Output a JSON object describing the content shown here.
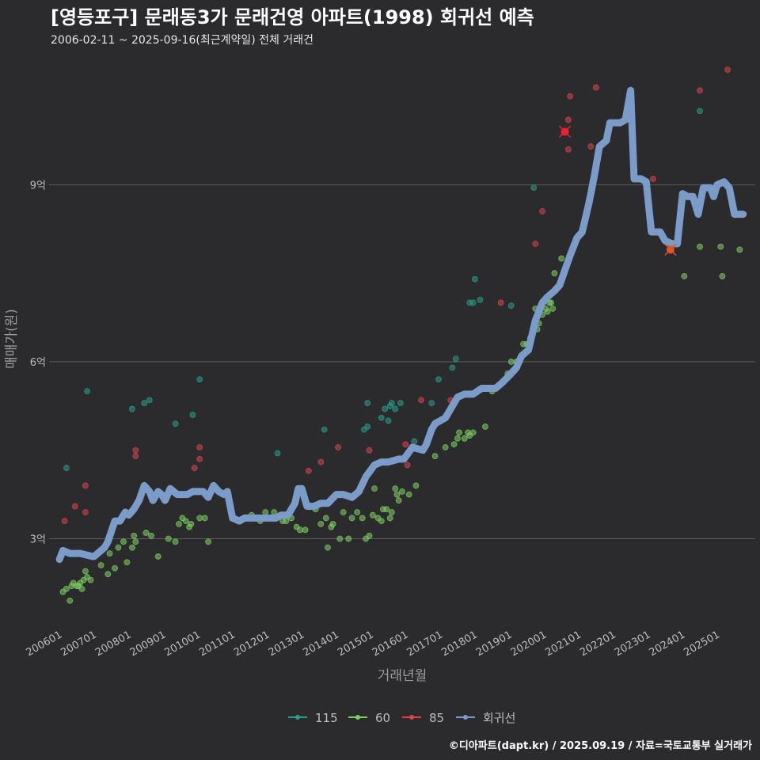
{
  "header": {
    "title": "[영등포구] 문래동3가 문래건영 아파트(1998) 회귀선 예측",
    "subtitle": "2006-02-11 ~ 2025-09-16(최근계약일) 전체 거래건"
  },
  "caption": "©디아파트(dapt.kr) / 2025.09.19 / 자료=국토교통부 실거래가",
  "colors": {
    "background": "#2b2b2d",
    "grid": "#5c5c5c",
    "s115": "#2a9d8a",
    "s60": "#7ecf62",
    "s85": "#d9434b",
    "regression": "#7b9bc9"
  },
  "chart_data": {
    "type": "scatter",
    "title": "[영등포구] 문래동3가 문래건영 아파트(1998) 회귀선 예측",
    "xlabel": "거래년월",
    "ylabel": "매매가(원)",
    "x_unit": "year (decimal)",
    "y_unit": "억",
    "xlim": [
      2005.7,
      2026.1
    ],
    "ylim": [
      1.45,
      11.3
    ],
    "x_ticks": [
      {
        "x": 2006.0,
        "label": "200601"
      },
      {
        "x": 2007.0,
        "label": "200701"
      },
      {
        "x": 2008.0,
        "label": "200801"
      },
      {
        "x": 2009.0,
        "label": "200901"
      },
      {
        "x": 2010.0,
        "label": "201001"
      },
      {
        "x": 2011.0,
        "label": "201101"
      },
      {
        "x": 2012.0,
        "label": "201201"
      },
      {
        "x": 2013.0,
        "label": "201301"
      },
      {
        "x": 2014.0,
        "label": "201401"
      },
      {
        "x": 2015.0,
        "label": "201501"
      },
      {
        "x": 2016.0,
        "label": "201601"
      },
      {
        "x": 2017.0,
        "label": "201701"
      },
      {
        "x": 2018.0,
        "label": "201801"
      },
      {
        "x": 2019.0,
        "label": "201901"
      },
      {
        "x": 2020.0,
        "label": "202001"
      },
      {
        "x": 2021.0,
        "label": "202101"
      },
      {
        "x": 2022.0,
        "label": "202201"
      },
      {
        "x": 2023.0,
        "label": "202301"
      },
      {
        "x": 2024.0,
        "label": "202401"
      },
      {
        "x": 2025.0,
        "label": "202501"
      }
    ],
    "y_ticks": [
      {
        "y": 3,
        "label": "3억"
      },
      {
        "y": 6,
        "label": "6억"
      },
      {
        "y": 9,
        "label": "9억"
      }
    ],
    "legend": [
      {
        "key": "115",
        "label": "115",
        "color": "#2a9d8a"
      },
      {
        "key": "60",
        "label": "60",
        "color": "#7ecf62"
      },
      {
        "key": "85",
        "label": "85",
        "color": "#d9434b"
      },
      {
        "key": "reg",
        "label": "회귀선",
        "color": "#7b9bc9"
      }
    ],
    "series": [
      {
        "name": "115",
        "points": [
          [
            2006.2,
            4.2
          ],
          [
            2006.8,
            5.5
          ],
          [
            2008.1,
            5.2
          ],
          [
            2008.45,
            5.3
          ],
          [
            2008.6,
            5.35
          ],
          [
            2009.35,
            4.95
          ],
          [
            2009.85,
            5.1
          ],
          [
            2010.05,
            5.7
          ],
          [
            2012.3,
            4.45
          ],
          [
            2013.65,
            4.85
          ],
          [
            2014.8,
            4.85
          ],
          [
            2014.9,
            4.9
          ],
          [
            2014.9,
            5.3
          ],
          [
            2015.3,
            5.05
          ],
          [
            2015.4,
            5.2
          ],
          [
            2015.5,
            5.0
          ],
          [
            2015.55,
            5.25
          ],
          [
            2015.6,
            5.3
          ],
          [
            2015.7,
            5.2
          ],
          [
            2015.85,
            5.3
          ],
          [
            2016.25,
            4.65
          ],
          [
            2016.75,
            5.3
          ],
          [
            2016.95,
            5.7
          ],
          [
            2017.35,
            5.9
          ],
          [
            2017.45,
            6.05
          ],
          [
            2017.85,
            7.0
          ],
          [
            2017.95,
            7.0
          ],
          [
            2018.0,
            7.4
          ],
          [
            2018.15,
            7.05
          ],
          [
            2019.05,
            6.95
          ],
          [
            2019.7,
            8.95
          ],
          [
            2024.5,
            10.25
          ]
        ]
      },
      {
        "name": "60",
        "points": [
          [
            2006.1,
            2.1
          ],
          [
            2006.2,
            2.15
          ],
          [
            2006.3,
            1.95
          ],
          [
            2006.35,
            2.2
          ],
          [
            2006.4,
            2.25
          ],
          [
            2006.5,
            2.2
          ],
          [
            2006.55,
            2.2
          ],
          [
            2006.6,
            2.25
          ],
          [
            2006.65,
            2.15
          ],
          [
            2006.7,
            2.3
          ],
          [
            2006.75,
            2.45
          ],
          [
            2006.8,
            2.35
          ],
          [
            2006.9,
            2.3
          ],
          [
            2007.0,
            2.7
          ],
          [
            2007.2,
            2.55
          ],
          [
            2007.4,
            2.4
          ],
          [
            2007.45,
            2.75
          ],
          [
            2007.6,
            2.5
          ],
          [
            2007.7,
            2.85
          ],
          [
            2007.85,
            2.95
          ],
          [
            2007.95,
            2.6
          ],
          [
            2008.1,
            2.85
          ],
          [
            2008.15,
            3.05
          ],
          [
            2008.2,
            2.95
          ],
          [
            2008.5,
            3.1
          ],
          [
            2008.65,
            3.05
          ],
          [
            2008.85,
            2.7
          ],
          [
            2009.15,
            3.0
          ],
          [
            2009.35,
            2.95
          ],
          [
            2009.45,
            3.25
          ],
          [
            2009.55,
            3.35
          ],
          [
            2009.65,
            3.3
          ],
          [
            2009.75,
            3.2
          ],
          [
            2009.8,
            3.25
          ],
          [
            2010.05,
            3.35
          ],
          [
            2010.2,
            3.35
          ],
          [
            2010.3,
            2.95
          ],
          [
            2011.15,
            3.3
          ],
          [
            2011.55,
            3.4
          ],
          [
            2011.8,
            3.3
          ],
          [
            2011.95,
            3.45
          ],
          [
            2012.2,
            3.45
          ],
          [
            2012.45,
            3.3
          ],
          [
            2012.55,
            3.3
          ],
          [
            2012.7,
            3.35
          ],
          [
            2012.85,
            3.2
          ],
          [
            2012.95,
            3.15
          ],
          [
            2013.1,
            3.15
          ],
          [
            2013.4,
            3.5
          ],
          [
            2013.55,
            3.25
          ],
          [
            2013.7,
            3.35
          ],
          [
            2013.75,
            2.85
          ],
          [
            2013.85,
            3.2
          ],
          [
            2013.9,
            3.25
          ],
          [
            2014.1,
            3.0
          ],
          [
            2014.2,
            3.45
          ],
          [
            2014.35,
            3.0
          ],
          [
            2014.45,
            3.35
          ],
          [
            2014.6,
            3.45
          ],
          [
            2014.75,
            3.35
          ],
          [
            2014.85,
            3.0
          ],
          [
            2014.95,
            3.05
          ],
          [
            2015.05,
            3.4
          ],
          [
            2015.1,
            3.85
          ],
          [
            2015.2,
            3.35
          ],
          [
            2015.3,
            3.3
          ],
          [
            2015.35,
            3.5
          ],
          [
            2015.45,
            3.5
          ],
          [
            2015.55,
            3.35
          ],
          [
            2015.6,
            3.45
          ],
          [
            2015.7,
            3.85
          ],
          [
            2015.75,
            3.75
          ],
          [
            2015.8,
            3.65
          ],
          [
            2015.9,
            3.8
          ],
          [
            2016.1,
            3.75
          ],
          [
            2016.3,
            3.9
          ],
          [
            2016.85,
            4.4
          ],
          [
            2017.15,
            4.55
          ],
          [
            2017.4,
            4.6
          ],
          [
            2017.5,
            4.7
          ],
          [
            2017.55,
            4.8
          ],
          [
            2017.7,
            4.7
          ],
          [
            2017.8,
            4.8
          ],
          [
            2017.85,
            4.75
          ],
          [
            2017.95,
            4.8
          ],
          [
            2018.3,
            4.9
          ],
          [
            2018.5,
            5.5
          ],
          [
            2018.95,
            5.8
          ],
          [
            2019.05,
            6.0
          ],
          [
            2019.15,
            5.85
          ],
          [
            2019.2,
            6.0
          ],
          [
            2019.4,
            6.3
          ],
          [
            2019.5,
            6.3
          ],
          [
            2019.6,
            6.4
          ],
          [
            2019.75,
            6.9
          ],
          [
            2019.8,
            6.55
          ],
          [
            2019.85,
            6.65
          ],
          [
            2019.95,
            6.8
          ],
          [
            2020.05,
            6.9
          ],
          [
            2020.1,
            6.85
          ],
          [
            2020.15,
            7.0
          ],
          [
            2020.2,
            7.0
          ],
          [
            2020.25,
            6.9
          ],
          [
            2020.3,
            7.5
          ],
          [
            2020.5,
            7.75
          ],
          [
            2024.05,
            7.45
          ],
          [
            2024.5,
            7.95
          ],
          [
            2025.1,
            7.95
          ],
          [
            2025.15,
            7.45
          ],
          [
            2025.65,
            7.9
          ]
        ]
      },
      {
        "name": "85",
        "points": [
          [
            2006.15,
            3.3
          ],
          [
            2006.45,
            3.55
          ],
          [
            2006.75,
            3.45
          ],
          [
            2006.75,
            3.9
          ],
          [
            2008.2,
            4.4
          ],
          [
            2008.2,
            4.5
          ],
          [
            2009.9,
            4.2
          ],
          [
            2010.05,
            4.35
          ],
          [
            2010.05,
            4.55
          ],
          [
            2013.2,
            4.15
          ],
          [
            2013.55,
            4.3
          ],
          [
            2014.05,
            4.55
          ],
          [
            2014.95,
            4.5
          ],
          [
            2016.0,
            4.6
          ],
          [
            2016.05,
            4.25
          ],
          [
            2016.45,
            5.35
          ],
          [
            2017.3,
            5.35
          ],
          [
            2018.75,
            7.0
          ],
          [
            2019.75,
            8.0
          ],
          [
            2019.95,
            8.55
          ],
          [
            2020.7,
            10.1
          ],
          [
            2020.7,
            9.6
          ],
          [
            2020.75,
            10.5
          ],
          [
            2021.35,
            9.65
          ],
          [
            2021.5,
            10.65
          ],
          [
            2023.15,
            9.1
          ],
          [
            2023.65,
            7.9
          ],
          [
            2024.5,
            10.6
          ],
          [
            2025.3,
            10.95
          ]
        ]
      }
    ],
    "highlighted": [
      {
        "series": "85",
        "x": 2020.6,
        "y": 9.9,
        "color": "#e8232f"
      },
      {
        "series": "85",
        "x": 2023.65,
        "y": 7.9,
        "color": "#e2542b"
      }
    ],
    "regression": [
      [
        2006.0,
        2.65
      ],
      [
        2006.1,
        2.8
      ],
      [
        2006.3,
        2.75
      ],
      [
        2006.6,
        2.75
      ],
      [
        2006.95,
        2.7
      ],
      [
        2007.0,
        2.7
      ],
      [
        2007.3,
        2.85
      ],
      [
        2007.4,
        2.95
      ],
      [
        2007.6,
        3.3
      ],
      [
        2007.75,
        3.3
      ],
      [
        2007.9,
        3.45
      ],
      [
        2008.0,
        3.4
      ],
      [
        2008.15,
        3.5
      ],
      [
        2008.3,
        3.65
      ],
      [
        2008.45,
        3.9
      ],
      [
        2008.6,
        3.8
      ],
      [
        2008.7,
        3.65
      ],
      [
        2008.85,
        3.8
      ],
      [
        2008.95,
        3.75
      ],
      [
        2009.05,
        3.65
      ],
      [
        2009.2,
        3.85
      ],
      [
        2009.4,
        3.75
      ],
      [
        2009.7,
        3.75
      ],
      [
        2009.85,
        3.8
      ],
      [
        2010.15,
        3.8
      ],
      [
        2010.3,
        3.7
      ],
      [
        2010.45,
        3.9
      ],
      [
        2010.6,
        3.8
      ],
      [
        2010.75,
        3.75
      ],
      [
        2010.85,
        3.8
      ],
      [
        2011.0,
        3.35
      ],
      [
        2011.2,
        3.3
      ],
      [
        2011.35,
        3.35
      ],
      [
        2011.6,
        3.35
      ],
      [
        2012.1,
        3.35
      ],
      [
        2012.25,
        3.35
      ],
      [
        2012.4,
        3.4
      ],
      [
        2012.6,
        3.4
      ],
      [
        2012.8,
        3.6
      ],
      [
        2012.9,
        3.85
      ],
      [
        2013.0,
        3.85
      ],
      [
        2013.15,
        3.55
      ],
      [
        2013.35,
        3.55
      ],
      [
        2013.55,
        3.6
      ],
      [
        2013.75,
        3.6
      ],
      [
        2014.0,
        3.75
      ],
      [
        2014.2,
        3.75
      ],
      [
        2014.45,
        3.7
      ],
      [
        2014.65,
        3.8
      ],
      [
        2014.85,
        4.05
      ],
      [
        2015.1,
        4.25
      ],
      [
        2015.3,
        4.3
      ],
      [
        2015.5,
        4.3
      ],
      [
        2015.8,
        4.35
      ],
      [
        2015.95,
        4.35
      ],
      [
        2016.2,
        4.55
      ],
      [
        2016.5,
        4.5
      ],
      [
        2016.6,
        4.6
      ],
      [
        2016.75,
        4.85
      ],
      [
        2016.85,
        4.95
      ],
      [
        2017.0,
        5.0
      ],
      [
        2017.15,
        5.05
      ],
      [
        2017.3,
        5.2
      ],
      [
        2017.5,
        5.4
      ],
      [
        2017.7,
        5.45
      ],
      [
        2017.95,
        5.45
      ],
      [
        2018.2,
        5.55
      ],
      [
        2018.6,
        5.55
      ],
      [
        2018.8,
        5.65
      ],
      [
        2019.05,
        5.8
      ],
      [
        2019.2,
        5.9
      ],
      [
        2019.35,
        6.1
      ],
      [
        2019.55,
        6.2
      ],
      [
        2019.75,
        6.7
      ],
      [
        2019.95,
        7.0
      ],
      [
        2020.1,
        7.1
      ],
      [
        2020.3,
        7.2
      ],
      [
        2020.45,
        7.3
      ],
      [
        2020.6,
        7.55
      ],
      [
        2020.75,
        7.8
      ],
      [
        2020.95,
        8.1
      ],
      [
        2021.1,
        8.2
      ],
      [
        2021.3,
        8.7
      ],
      [
        2021.45,
        9.15
      ],
      [
        2021.6,
        9.65
      ],
      [
        2021.8,
        9.75
      ],
      [
        2021.9,
        10.05
      ],
      [
        2022.2,
        10.05
      ],
      [
        2022.35,
        10.1
      ],
      [
        2022.5,
        10.6
      ],
      [
        2022.6,
        9.1
      ],
      [
        2022.8,
        9.1
      ],
      [
        2022.95,
        9.05
      ],
      [
        2023.1,
        8.2
      ],
      [
        2023.35,
        8.2
      ],
      [
        2023.5,
        8.05
      ],
      [
        2023.7,
        8.0
      ],
      [
        2023.85,
        8.0
      ],
      [
        2024.0,
        8.85
      ],
      [
        2024.15,
        8.8
      ],
      [
        2024.3,
        8.8
      ],
      [
        2024.45,
        8.5
      ],
      [
        2024.6,
        8.95
      ],
      [
        2024.8,
        8.95
      ],
      [
        2024.9,
        8.8
      ],
      [
        2025.0,
        9.0
      ],
      [
        2025.2,
        9.05
      ],
      [
        2025.35,
        8.95
      ],
      [
        2025.5,
        8.5
      ],
      [
        2025.75,
        8.5
      ]
    ]
  }
}
